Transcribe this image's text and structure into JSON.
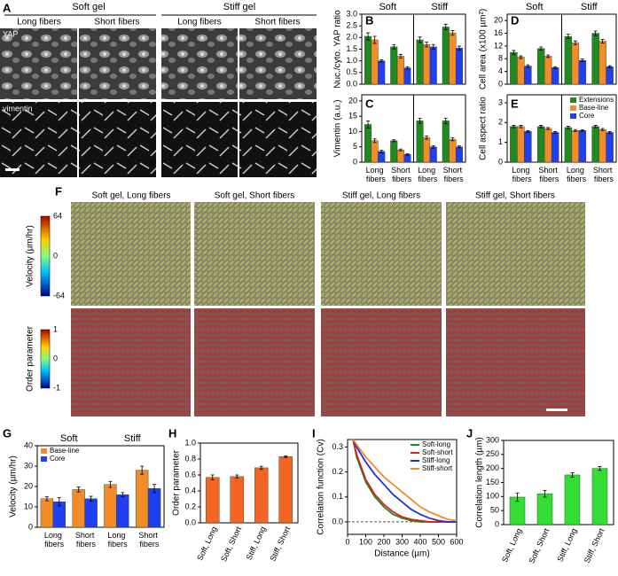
{
  "panel_labels": [
    "A",
    "B",
    "C",
    "D",
    "E",
    "F",
    "G",
    "H",
    "I",
    "J"
  ],
  "images": {
    "A": {
      "groups": [
        "Soft gel",
        "Stiff gel"
      ],
      "columns": [
        "Long fibers",
        "Short fibers",
        "Long fibers",
        "Short fibers"
      ],
      "rows": [
        "YAP",
        "vimentin"
      ]
    },
    "F": {
      "titles": [
        "Soft gel, Long fibers",
        "Soft gel, Short fibers",
        "Stiff gel, Long fibers",
        "Stiff gel, Short fibers"
      ],
      "colorbars": [
        {
          "label": "Velocity (µm/hr)",
          "ticks": [
            "64",
            "0",
            "-64"
          ]
        },
        {
          "label": "Order parameter",
          "ticks": [
            "1",
            "0",
            "-1"
          ]
        }
      ]
    }
  },
  "chart_data": [
    {
      "type": "bar",
      "ylabel": "Nuc./cyto. YAP ratio",
      "group_labels": [
        "Soft",
        "Stiff"
      ],
      "divider": true,
      "series": [
        {
          "color": "#1f8a1f",
          "values": [
            2.05,
            1.6,
            1.9,
            2.45
          ],
          "errors": [
            0.15,
            0.1,
            0.12,
            0.12
          ]
        },
        {
          "color": "#f28c28",
          "values": [
            1.9,
            1.2,
            1.7,
            2.2
          ],
          "errors": [
            0.15,
            0.08,
            0.1,
            0.1
          ]
        },
        {
          "color": "#1f3ff0",
          "values": [
            1.0,
            0.7,
            1.6,
            1.55
          ],
          "errors": [
            0.05,
            0.05,
            0.1,
            0.08
          ]
        }
      ],
      "ylim": [
        0,
        3
      ],
      "yticks": [
        {
          "value": 0,
          "label": "0.0"
        },
        {
          "value": 0.5,
          "label": "0.5"
        },
        {
          "value": 1,
          "label": "1.0"
        },
        {
          "value": 1.5,
          "label": "1.5"
        },
        {
          "value": 2,
          "label": "2.0"
        },
        {
          "value": 2.5,
          "label": "2.5"
        },
        {
          "value": 3,
          "label": "3.0"
        }
      ]
    },
    {
      "type": "bar",
      "ylabel": "Vimentin (a.u.)",
      "divider": true,
      "categories": [
        "Long fibers",
        "Short fibers",
        "Long fibers",
        "Short fibers"
      ],
      "series": [
        {
          "color": "#1f8a1f",
          "values": [
            12.3,
            7,
            13.5,
            13.5
          ],
          "errors": [
            1.2,
            0.3,
            0.8,
            0.9
          ]
        },
        {
          "color": "#f28c28",
          "values": [
            7,
            4,
            8,
            7.5
          ],
          "errors": [
            0.6,
            0.3,
            0.5,
            0.5
          ]
        },
        {
          "color": "#1f3ff0",
          "values": [
            3.5,
            2.5,
            5,
            5
          ],
          "errors": [
            0.4,
            0.2,
            0.4,
            0.3
          ]
        }
      ],
      "ylim": [
        0,
        22
      ],
      "yticks": [
        0,
        5,
        10,
        15,
        20
      ]
    },
    {
      "type": "bar",
      "ylabel": "Cell area (x100 µm²)",
      "group_labels": [
        "Soft",
        "Stiff"
      ],
      "divider": true,
      "series": [
        {
          "color": "#1f8a1f",
          "values": [
            10,
            11.2,
            15,
            16
          ],
          "errors": [
            0.6,
            0.5,
            0.7,
            0.7
          ]
        },
        {
          "color": "#f28c28",
          "values": [
            8.5,
            8.8,
            13,
            13.5
          ],
          "errors": [
            0.4,
            0.4,
            0.6,
            0.6
          ]
        },
        {
          "color": "#1f3ff0",
          "values": [
            5.7,
            5.2,
            7.5,
            5.5
          ],
          "errors": [
            0.4,
            0.3,
            0.4,
            0.3
          ]
        }
      ],
      "ylim": [
        0,
        22
      ],
      "yticks": [
        0,
        4,
        8,
        12,
        16,
        20
      ]
    },
    {
      "type": "bar",
      "ylabel": "Cell aspect ratio",
      "divider": true,
      "categories": [
        "Long fibers",
        "Short fibers",
        "Long fibers",
        "Short fibers"
      ],
      "legend": "upper right",
      "series": [
        {
          "name": "Extensions",
          "color": "#1f8a1f",
          "values": [
            1.8,
            1.8,
            1.75,
            1.8
          ],
          "errors": [
            0.06,
            0.06,
            0.06,
            0.06
          ]
        },
        {
          "name": "Base-line",
          "color": "#f28c28",
          "values": [
            1.8,
            1.7,
            1.6,
            1.65
          ],
          "errors": [
            0.06,
            0.05,
            0.05,
            0.05
          ]
        },
        {
          "name": "Core",
          "color": "#1f3ff0",
          "values": [
            1.55,
            1.5,
            1.6,
            1.5
          ],
          "errors": [
            0.04,
            0.04,
            0.04,
            0.04
          ]
        }
      ],
      "ylim": [
        0,
        3.4
      ],
      "yticks": [
        0,
        1,
        2,
        3
      ]
    },
    {
      "type": "bar",
      "ylabel": "Velocity (µm/hr)",
      "group_labels": [
        "Soft",
        "Stiff"
      ],
      "categories": [
        "Long fibers",
        "Short fibers",
        "Long fibers",
        "Short fibers"
      ],
      "legend": "upper left",
      "series": [
        {
          "name": "Base-line",
          "color": "#f28c28",
          "values": [
            14,
            18.5,
            21,
            28
          ],
          "errors": [
            1,
            1.2,
            1.5,
            2
          ]
        },
        {
          "name": "Core",
          "color": "#1f3ff0",
          "values": [
            12.5,
            14,
            16,
            19
          ],
          "errors": [
            2,
            1.2,
            1,
            2
          ]
        }
      ],
      "ylim": [
        0,
        40
      ],
      "yticks": [
        0,
        10,
        20,
        30,
        40
      ]
    },
    {
      "type": "bar",
      "ylabel": "Order parameter",
      "rotate_labels": true,
      "categories": [
        "Soft, Long",
        "Soft, Short",
        "Stiff, Long",
        "Stiff, Short"
      ],
      "color": "#f26522",
      "values": [
        0.57,
        0.58,
        0.69,
        0.83
      ],
      "errors": [
        0.03,
        0.02,
        0.02,
        0.01
      ],
      "ylim": [
        0,
        1
      ],
      "yticks": [
        {
          "value": 0,
          "label": "0.0"
        },
        {
          "value": 0.2,
          "label": "0.2"
        },
        {
          "value": 0.4,
          "label": "0.4"
        },
        {
          "value": 0.6,
          "label": "0.6"
        },
        {
          "value": 0.8,
          "label": "0.8"
        },
        {
          "value": 1,
          "label": "1.0"
        }
      ]
    },
    {
      "type": "line",
      "ylabel": "Correlation function (Cv)",
      "xlabel": "Distance (µm)",
      "legend": "upper right",
      "x": [
        30,
        50,
        100,
        150,
        200,
        250,
        300,
        350,
        400,
        450,
        500,
        550,
        600
      ],
      "series": [
        {
          "name": "Soft-long",
          "color": "#1f8a1f",
          "values": [
            0.33,
            0.26,
            0.16,
            0.1,
            0.06,
            0.03,
            0.015,
            0.005,
            0,
            0,
            0,
            0,
            0
          ]
        },
        {
          "name": "Soft-short",
          "color": "#e02020",
          "values": [
            0.33,
            0.27,
            0.17,
            0.11,
            0.07,
            0.04,
            0.02,
            0.01,
            0.005,
            0,
            0,
            0,
            0
          ]
        },
        {
          "name": "Stiff-long",
          "color": "#2030e0",
          "values": [
            0.33,
            0.3,
            0.24,
            0.19,
            0.15,
            0.11,
            0.08,
            0.05,
            0.03,
            0.015,
            0.005,
            0,
            0
          ]
        },
        {
          "name": "Stiff-short",
          "color": "#f28c28",
          "values": [
            0.33,
            0.31,
            0.26,
            0.22,
            0.18,
            0.15,
            0.12,
            0.09,
            0.06,
            0.04,
            0.025,
            0.01,
            0.005
          ]
        }
      ],
      "xlim": [
        0,
        600
      ],
      "xticks": [
        0,
        100,
        200,
        300,
        400,
        500,
        600
      ],
      "ylim": [
        -0.05,
        0.33
      ],
      "yticks": [
        {
          "value": 0,
          "label": "0.0"
        },
        {
          "value": 0.1,
          "label": "0.1"
        },
        {
          "value": 0.2,
          "label": "0.2"
        },
        {
          "value": 0.3,
          "label": "0.3"
        }
      ]
    },
    {
      "type": "bar",
      "ylabel": "Correlation length (µm)",
      "rotate_labels": true,
      "categories": [
        "Soft, Long",
        "Soft, Short",
        "Stiff, Long",
        "Stiff, Short"
      ],
      "color": "#33dd33",
      "values": [
        98,
        110,
        177,
        200
      ],
      "errors": [
        15,
        12,
        8,
        7
      ],
      "ylim": [
        0,
        300
      ],
      "yticks": [
        0,
        50,
        100,
        150,
        200,
        250,
        300
      ]
    }
  ]
}
